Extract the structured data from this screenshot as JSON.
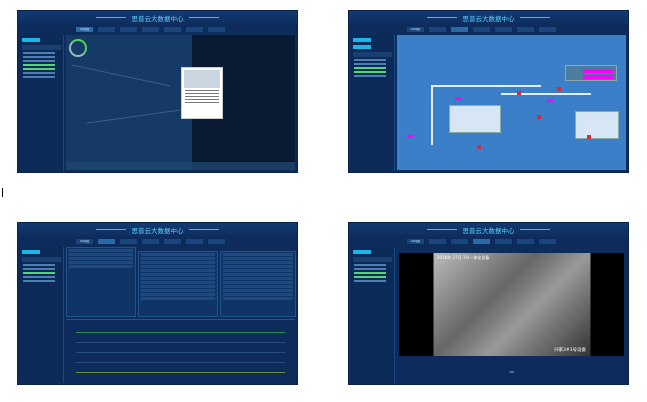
{
  "app": {
    "title": "思普云大数据中心"
  },
  "nav": {
    "items": [
      "GIS地图",
      "",
      "",
      "",
      "",
      "",
      ""
    ]
  },
  "panels": [
    {
      "active_tab": 0,
      "view": "map"
    },
    {
      "active_tab": 2,
      "view": "process-diagram"
    },
    {
      "active_tab": 1,
      "view": "data-tables-chart"
    },
    {
      "active_tab": 3,
      "view": "video"
    }
  ],
  "video": {
    "overlay_time": "2018年 27日",
    "overlay_caption": "3号一体化设备",
    "overlay_device": "兴家3#3号设备",
    "pager": "1/2"
  },
  "colors": {
    "bg": "#0d2c5c",
    "accent": "#19b6e6",
    "pid_bg": "#3a7fc8",
    "valve": "#d8283a",
    "label": "#ff00ff"
  }
}
